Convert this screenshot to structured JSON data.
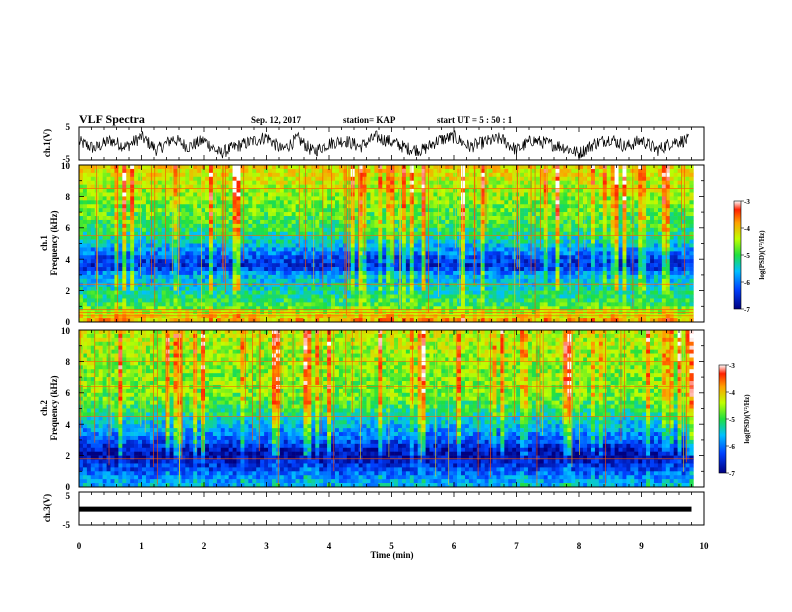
{
  "header": {
    "title": "VLF Spectra",
    "date": "Sep. 12, 2017",
    "station": "station= KAP",
    "start": "start  UT  =   5 : 50 : 1"
  },
  "chart_data": [
    {
      "type": "line",
      "panel": "ch1-waveform",
      "ylabel": "ch.1(V)",
      "ylim": [
        -5,
        5
      ],
      "yticks": [
        "5",
        "-5"
      ],
      "xlim": [
        0,
        10
      ],
      "series": [
        {
          "name": "",
          "color": "#000000",
          "x": [
            0,
            0.25,
            0.5,
            0.75,
            1,
            1.25,
            1.5,
            1.75,
            2,
            2.25,
            2.5,
            2.75,
            3,
            3.25,
            3.5,
            3.75,
            4,
            4.25,
            4.5,
            4.75,
            5,
            5.25,
            5.5,
            5.75,
            6,
            6.25,
            6.5,
            6.75,
            7,
            7.25,
            7.5,
            7.75,
            8,
            8.25,
            8.5,
            8.75,
            9,
            9.25,
            9.5,
            9.75
          ],
          "values": [
            0.5,
            -1.5,
            1,
            -1,
            2,
            -2,
            1.5,
            -1,
            1,
            -3,
            -1,
            0.5,
            2,
            -2,
            1.5,
            -2.5,
            0,
            1,
            -1,
            2,
            0.5,
            -1.5,
            -2,
            1,
            2,
            -1,
            0.5,
            1.5,
            -2,
            1,
            0,
            -1,
            -3,
            0,
            1.5,
            -1,
            1,
            -2,
            0.5,
            1
          ]
        }
      ]
    },
    {
      "type": "heatmap",
      "panel": "ch1-spectrogram",
      "ylabel_top": "ch.1",
      "ylabel_bottom": "Frequency (kHz)",
      "ylim": [
        0,
        10
      ],
      "yticks": [
        "0",
        "2",
        "4",
        "6",
        "8",
        "10"
      ],
      "xlim": [
        0,
        10
      ],
      "value_range": [
        -7,
        -3
      ],
      "colorbar_label": "log(PSD)(V²/Hz)",
      "colorbar_ticks": [
        "-3",
        "-4",
        "-5",
        "-6",
        "-7"
      ],
      "profile_freq_khz": [
        0,
        0.5,
        1,
        2,
        3,
        3.5,
        4,
        5,
        6,
        8,
        10
      ],
      "profile_log_psd": [
        -3.8,
        -4.3,
        -4.9,
        -5.3,
        -5.7,
        -6.5,
        -6.3,
        -5.5,
        -5.0,
        -4.6,
        -4.1
      ],
      "hlines_khz": [
        0.4,
        0.6,
        0.8,
        2.4,
        5.5,
        8.5
      ]
    },
    {
      "type": "heatmap",
      "panel": "ch2-spectrogram",
      "ylabel_top": "ch.2",
      "ylabel_bottom": "Frequency (kHz)",
      "ylim": [
        0,
        10
      ],
      "yticks": [
        "0",
        "2",
        "4",
        "6",
        "8",
        "10"
      ],
      "xlim": [
        0,
        10
      ],
      "value_range": [
        -7,
        -3
      ],
      "colorbar_label": "log(PSD)(V²/Hz)",
      "colorbar_ticks": [
        "-3",
        "-4",
        "-5",
        "-6",
        "-7"
      ],
      "profile_freq_khz": [
        0,
        0.5,
        1,
        1.5,
        2,
        2.5,
        3,
        4,
        5,
        6,
        8,
        10
      ],
      "profile_log_psd": [
        -5.6,
        -5.8,
        -6.2,
        -6.5,
        -6.9,
        -6.6,
        -6.1,
        -5.6,
        -5.0,
        -4.7,
        -4.6,
        -4.4
      ],
      "hlines_khz": [
        1.8,
        4.5,
        6.4,
        8.0
      ]
    },
    {
      "type": "line",
      "panel": "ch3-waveform",
      "ylabel": "ch.3(V)",
      "ylim": [
        -5,
        5
      ],
      "yticks": [
        "5",
        "-5"
      ],
      "xlim": [
        0,
        10
      ],
      "xlabel": "Time (min)",
      "xticks": [
        "0",
        "1",
        "2",
        "3",
        "4",
        "5",
        "6",
        "7",
        "8",
        "9",
        "10"
      ],
      "series": [
        {
          "name": "",
          "color": "#000000",
          "x": [
            0,
            9.8
          ],
          "values": [
            -0.2,
            -0.2
          ]
        }
      ]
    }
  ]
}
